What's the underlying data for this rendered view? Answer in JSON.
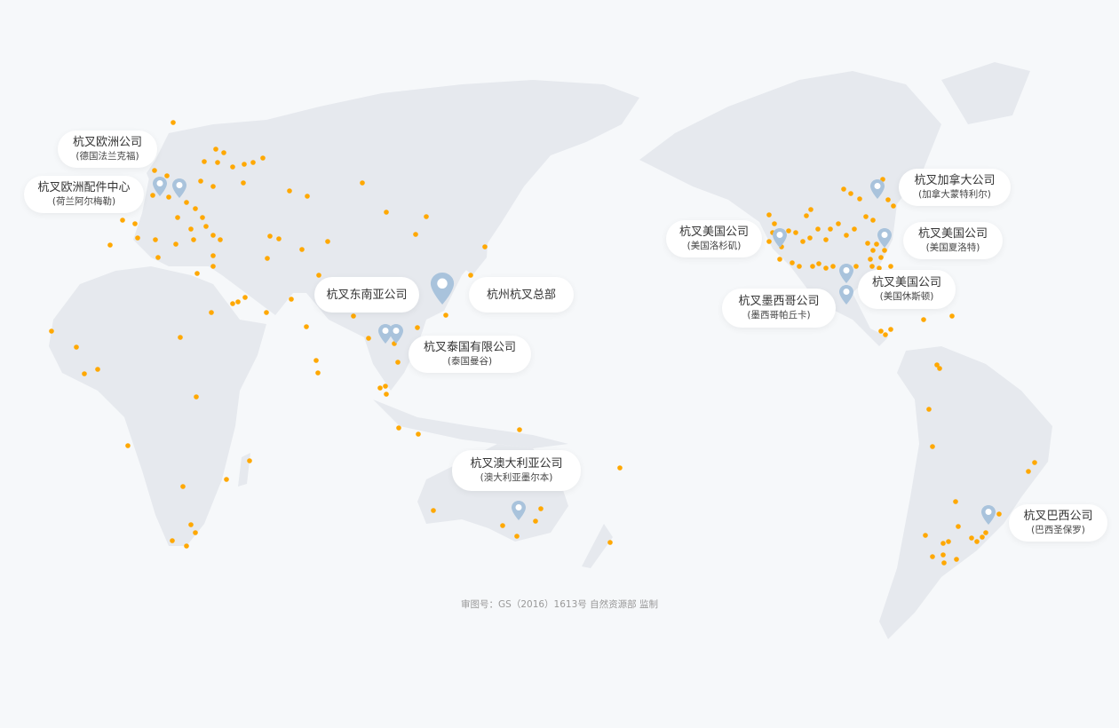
{
  "map": {
    "land_color": "#e6e9ee",
    "background_color": "#f6f8fa",
    "dot_color": "#ffa800",
    "pin_color": "#a9c3dc"
  },
  "offices": [
    {
      "name": "杭叉欧洲公司",
      "location": "(德国法兰克福)"
    },
    {
      "name": "杭叉欧洲配件中心",
      "location": "(荷兰阿尔梅勒)"
    },
    {
      "name": "杭叉东南亚公司",
      "location": ""
    },
    {
      "name": "杭州杭叉总部",
      "location": ""
    },
    {
      "name": "杭叉泰国有限公司",
      "location": "(泰国曼谷)"
    },
    {
      "name": "杭叉澳大利亚公司",
      "location": "(澳大利亚墨尔本)"
    },
    {
      "name": "杭叉美国公司",
      "location": "(美国洛杉矶)"
    },
    {
      "name": "杭叉墨西哥公司",
      "location": "(墨西哥帕丘卡)"
    },
    {
      "name": "杭叉加拿大公司",
      "location": "(加拿大蒙特利尔)"
    },
    {
      "name": "杭叉美国公司",
      "location": "(美国夏洛特)"
    },
    {
      "name": "杭叉美国公司",
      "location": "(美国休斯顿)"
    },
    {
      "name": "杭叉巴西公司",
      "location": "(巴西圣保罗)"
    }
  ],
  "approval_number": "审图号：GS（2016）1613号 自然资源部 监制"
}
